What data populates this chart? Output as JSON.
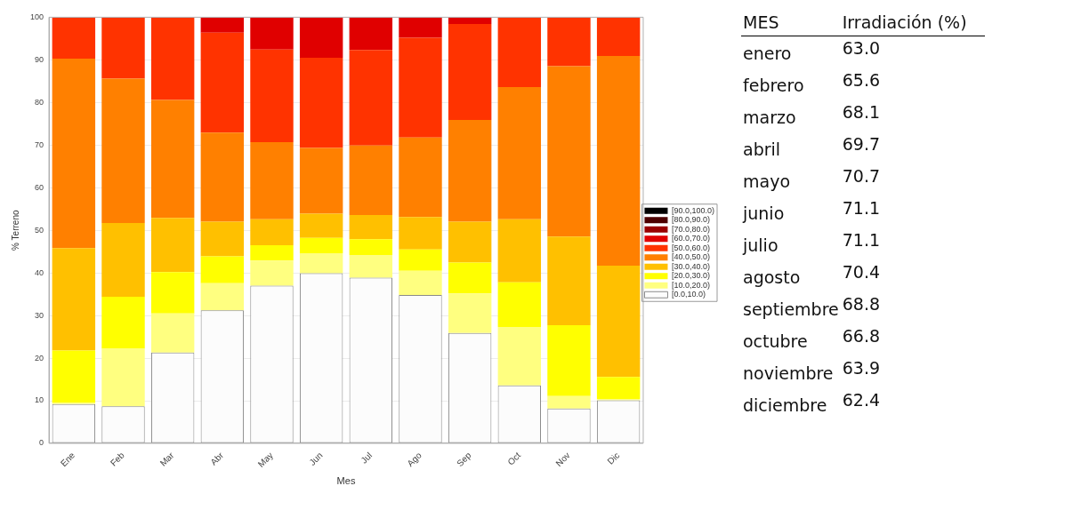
{
  "chart_data": [
    {
      "type": "bar",
      "stacked": true,
      "xlabel": "Mes",
      "ylabel": "% Terreno",
      "categories": [
        "Ene",
        "Feb",
        "Mar",
        "Abr",
        "May",
        "Jun",
        "Jul",
        "Ago",
        "Sep",
        "Oct",
        "Nov",
        "Dic"
      ],
      "series": [
        {
          "name": "[0.0,10.0)",
          "color": "#fcfcfc",
          "values": [
            9.2,
            8.7,
            21.3,
            31.2,
            37.0,
            39.9,
            38.9,
            34.8,
            25.9,
            13.6,
            8.2,
            10.1
          ]
        },
        {
          "name": "[10.0,20.0)",
          "color": "#ffff80",
          "values": [
            0.4,
            13.5,
            9.2,
            6.4,
            5.9,
            4.7,
            5.3,
            5.7,
            9.3,
            13.7,
            2.9,
            0.3
          ]
        },
        {
          "name": "[20.0,30.0)",
          "color": "#ffff00",
          "values": [
            12.2,
            12.2,
            9.7,
            6.3,
            3.6,
            3.6,
            3.7,
            5.0,
            7.2,
            10.5,
            16.6,
            5.2
          ]
        },
        {
          "name": "[30.0,40.0)",
          "color": "#ffc000",
          "values": [
            24.0,
            17.3,
            12.7,
            8.1,
            6.1,
            5.7,
            5.7,
            7.6,
            9.6,
            14.8,
            20.8,
            26.1
          ]
        },
        {
          "name": "[40.0,50.0)",
          "color": "#ff8000",
          "values": [
            44.5,
            33.9,
            27.7,
            20.9,
            18.1,
            15.4,
            16.3,
            18.7,
            23.9,
            31.0,
            40.0,
            49.2
          ]
        },
        {
          "name": "[50.0,60.0)",
          "color": "#ff3300",
          "values": [
            9.7,
            14.4,
            19.4,
            23.5,
            21.7,
            21.2,
            22.4,
            23.4,
            22.5,
            16.4,
            11.5,
            9.1
          ]
        },
        {
          "name": "[60.0,70.0)",
          "color": "#e00000",
          "values": [
            0,
            0,
            0,
            3.6,
            7.6,
            9.5,
            7.7,
            4.8,
            1.6,
            0,
            0,
            0
          ]
        },
        {
          "name": "[70.0,80.0)",
          "color": "#990000",
          "values": [
            0,
            0,
            0,
            0,
            0,
            0,
            0,
            0,
            0,
            0,
            0,
            0
          ]
        },
        {
          "name": "[80.0,90.0)",
          "color": "#4d0000",
          "values": [
            0,
            0,
            0,
            0,
            0,
            0,
            0,
            0,
            0,
            0,
            0,
            0
          ]
        },
        {
          "name": "[90.0,100.0)",
          "color": "#000000",
          "values": [
            0,
            0,
            0,
            0,
            0,
            0,
            0,
            0,
            0,
            0,
            0,
            0
          ]
        }
      ],
      "ylim": [
        0,
        100
      ],
      "yticks": [
        0,
        10,
        20,
        30,
        40,
        50,
        60,
        70,
        80,
        90,
        100
      ],
      "grid": "y",
      "legend": "right"
    },
    {
      "type": "other",
      "xlabel": "MES",
      "ylabel": "Irradiación (%)",
      "categories": [
        "enero",
        "febrero",
        "marzo",
        "abril",
        "mayo",
        "junio",
        "julio",
        "agosto",
        "septiembre",
        "octubre",
        "noviembre",
        "diciembre"
      ],
      "value_labels": [
        "63.0",
        "65.6",
        "68.1",
        "69.7",
        "70.7",
        "71.1",
        "71.1",
        "70.4",
        "68.8",
        "66.8",
        "63.9",
        "62.4"
      ]
    }
  ]
}
